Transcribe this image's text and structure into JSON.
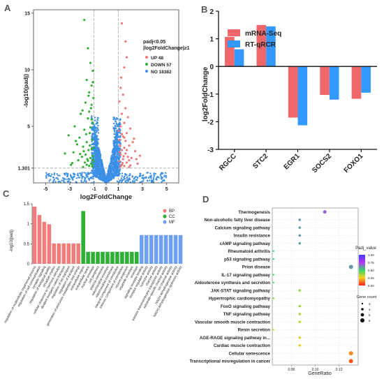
{
  "panels": {
    "a": "A",
    "b": "B",
    "c": "C",
    "d": "D"
  },
  "chart_data": [
    {
      "id": "A",
      "type": "scatter",
      "xlabel": "log2FoldChange",
      "ylabel": "-log10(padj)",
      "xlim": [
        -6,
        6
      ],
      "ylim": [
        0,
        15.3
      ],
      "xticks": [
        -5,
        -3,
        -1,
        0,
        1,
        3,
        5
      ],
      "yticks": [
        1.301,
        5,
        10,
        15
      ],
      "yticklabels": [
        "1.301",
        "5",
        "10",
        "15"
      ],
      "vlines": [
        -1,
        1
      ],
      "hline": 1.301,
      "legend": {
        "title_lines": [
          "padj<0.05",
          "|log2FoldChange|≥1"
        ],
        "position": "top-right",
        "entries": [
          {
            "label": "UP 48",
            "color": "#f0787a"
          },
          {
            "label": "DOWN 57",
            "color": "#2eb135"
          },
          {
            "label": "NO 18382",
            "color": "#3b8fe6"
          }
        ]
      },
      "up_points": [
        [
          1.3,
          14.1
        ],
        [
          1.6,
          12.5
        ],
        [
          1.7,
          11.1
        ],
        [
          1.5,
          10.2
        ],
        [
          1.2,
          8.4
        ],
        [
          1.4,
          7.8
        ],
        [
          1.1,
          7.2
        ],
        [
          1.6,
          6.6
        ],
        [
          1.3,
          6.1
        ],
        [
          1.8,
          5.8
        ],
        [
          1.5,
          5.3
        ],
        [
          1.2,
          5.0
        ],
        [
          2.0,
          4.8
        ],
        [
          1.7,
          4.4
        ],
        [
          1.4,
          4.1
        ],
        [
          1.1,
          3.8
        ],
        [
          2.2,
          3.6
        ],
        [
          1.9,
          3.3
        ],
        [
          1.5,
          3.1
        ],
        [
          1.3,
          2.9
        ],
        [
          2.4,
          2.8
        ],
        [
          1.6,
          2.6
        ],
        [
          1.2,
          2.5
        ],
        [
          1.8,
          2.3
        ],
        [
          2.1,
          2.2
        ],
        [
          1.4,
          2.1
        ],
        [
          1.1,
          1.9
        ],
        [
          1.7,
          1.8
        ],
        [
          2.6,
          1.7
        ],
        [
          1.3,
          1.6
        ],
        [
          1.5,
          1.5
        ],
        [
          1.9,
          1.4
        ],
        [
          2.3,
          3.9
        ],
        [
          1.05,
          4.6
        ],
        [
          1.25,
          9.3
        ],
        [
          1.45,
          2.35
        ],
        [
          2.8,
          2.4
        ],
        [
          1.15,
          3.3
        ],
        [
          1.35,
          1.75
        ],
        [
          2.0,
          1.55
        ],
        [
          1.6,
          3.7
        ],
        [
          1.1,
          2.7
        ],
        [
          1.9,
          2.0
        ],
        [
          2.5,
          2.1
        ],
        [
          1.3,
          4.3
        ],
        [
          1.7,
          2.9
        ],
        [
          1.2,
          1.45
        ],
        [
          1.5,
          4.0
        ]
      ],
      "down_points": [
        [
          -1.8,
          14.4
        ],
        [
          -1.5,
          11.9
        ],
        [
          -1.3,
          10.6
        ],
        [
          -1.1,
          9.9
        ],
        [
          -1.6,
          9.1
        ],
        [
          -1.2,
          8.6
        ],
        [
          -1.4,
          8.0
        ],
        [
          -1.05,
          7.5
        ],
        [
          -1.7,
          7.1
        ],
        [
          -1.25,
          6.6
        ],
        [
          -2.1,
          6.1
        ],
        [
          -1.5,
          5.7
        ],
        [
          -1.1,
          5.3
        ],
        [
          -2.6,
          5.0
        ],
        [
          -1.8,
          4.7
        ],
        [
          -1.35,
          4.4
        ],
        [
          -3.1,
          4.2
        ],
        [
          -2.2,
          4.0
        ],
        [
          -1.15,
          3.8
        ],
        [
          -1.6,
          3.6
        ],
        [
          -2.4,
          3.4
        ],
        [
          -1.9,
          3.2
        ],
        [
          -1.2,
          3.0
        ],
        [
          -1.45,
          2.9
        ],
        [
          -2.7,
          2.7
        ],
        [
          -3.4,
          2.6
        ],
        [
          -1.7,
          2.5
        ],
        [
          -1.1,
          2.4
        ],
        [
          -2.0,
          2.3
        ],
        [
          -1.3,
          2.2
        ],
        [
          -1.55,
          2.1
        ],
        [
          -2.3,
          2.0
        ],
        [
          -1.05,
          1.9
        ],
        [
          -1.75,
          1.8
        ],
        [
          -1.25,
          1.7
        ],
        [
          -2.9,
          1.6
        ],
        [
          -1.4,
          1.5
        ],
        [
          -1.15,
          1.45
        ],
        [
          -1.9,
          1.4
        ],
        [
          -1.2,
          6.9
        ],
        [
          -1.45,
          7.7
        ],
        [
          -1.1,
          8.9
        ],
        [
          -1.35,
          3.3
        ],
        [
          -2.5,
          3.7
        ],
        [
          -1.65,
          4.3
        ],
        [
          -1.2,
          5.6
        ],
        [
          -1.85,
          2.8
        ],
        [
          -1.05,
          3.1
        ],
        [
          -2.15,
          2.55
        ],
        [
          -1.5,
          1.95
        ],
        [
          -1.3,
          4.9
        ],
        [
          -1.95,
          6.4
        ],
        [
          -1.1,
          2.05
        ],
        [
          -1.6,
          1.6
        ],
        [
          -2.8,
          1.75
        ],
        [
          -1.4,
          6.3
        ],
        [
          -1.15,
          1.6
        ]
      ],
      "no_count": 18382
    },
    {
      "id": "B",
      "type": "bar",
      "categories": [
        "RGCC",
        "STC2",
        "EGR1",
        "SOCS2",
        "FOXO1"
      ],
      "series": [
        {
          "name": "mRNA-Seq",
          "color": "#f0676b",
          "values": [
            1.07,
            1.5,
            -1.85,
            -1.03,
            -1.17
          ]
        },
        {
          "name": "RT-qRCR",
          "color": "#3399ff",
          "values": [
            0.62,
            1.45,
            -2.13,
            -1.2,
            -0.95
          ]
        }
      ],
      "ylabel": "log2FoldChange",
      "ylim": [
        -3,
        2
      ],
      "yticks": [
        -3,
        -2,
        -1,
        0,
        1,
        2
      ],
      "legend": "top-left"
    },
    {
      "id": "C",
      "type": "bar",
      "ylabel": "-log10(padj)",
      "ylim": [
        0,
        1.5
      ],
      "yticks": [
        0,
        0.5,
        1,
        1.5
      ],
      "legend": {
        "position": "top-right",
        "entries": [
          {
            "label": "BP",
            "color": "#f07c7c"
          },
          {
            "label": "CC",
            "color": "#2db135"
          },
          {
            "label": "MF",
            "color": "#6da0f2"
          }
        ]
      },
      "categories": [
        "regulation of multicellular organismal process",
        "regulation of cell communication",
        "synaptic signaling",
        "regulation of biological quality",
        "circadian rhythm",
        "cellular response to hormone stimulus",
        "divalent inorganic cation transport",
        "regulation of ion transport",
        "regulation of transport",
        "generation of precursor metabolites and energy",
        "extracellular region",
        "extracellular space",
        "nuclear envelope",
        "cell periphery",
        "plasma membrane",
        "mitochondrial envelope",
        "mitochondrial membrane",
        "integral component of membrane",
        "intrinsic component of membrane",
        "neuron projection",
        "organelle envelope",
        "envelope",
        "signaling receptor binding",
        "receptor regulator activity",
        "hormone activity",
        "channel activity",
        "passive transmembrane transporter activity",
        "substrate-specific channel activity",
        "ion channel activity",
        "NADH dehydrogenase activity",
        "NADH dehydrogenase (quinone) activity"
      ],
      "groups": [
        "BP",
        "BP",
        "BP",
        "BP",
        "BP",
        "BP",
        "BP",
        "BP",
        "BP",
        "BP",
        "CC",
        "CC",
        "CC",
        "CC",
        "CC",
        "CC",
        "CC",
        "CC",
        "CC",
        "CC",
        "CC",
        "CC",
        "MF",
        "MF",
        "MF",
        "MF",
        "MF",
        "MF",
        "MF",
        "MF",
        "MF"
      ],
      "values": [
        1.43,
        1.22,
        1.05,
        0.99,
        0.51,
        0.51,
        0.51,
        0.51,
        0.51,
        0.51,
        1.32,
        0.3,
        0.3,
        0.3,
        0.3,
        0.3,
        0.3,
        0.3,
        0.3,
        0.3,
        0.3,
        0.3,
        0.72,
        0.72,
        0.72,
        0.72,
        0.72,
        0.72,
        0.72,
        0.72,
        0.72
      ]
    },
    {
      "id": "D",
      "type": "scatter",
      "xlabel": "GeneRatio",
      "xlim": [
        0.064,
        0.136
      ],
      "xticks": [
        0.08,
        0.1,
        0.12
      ],
      "xticklabels": [
        "0.08",
        "0.10",
        "0.12"
      ],
      "categories": [
        "Thermogenesis",
        "Non-alcoholic fatty liver disease",
        "Calcium signaling pathway",
        "Insulin resistance",
        "cAMP signaling pathway",
        "Rheumatoid arthritis",
        "p53 signaling pathway",
        "Prion disease",
        "IL-17 signaling pathway",
        "Aldosterone synthesis and secretion",
        "JAK-STAT signaling pathway",
        "Hypertrophic cardiomyopathy",
        "FoxO signaling pathway",
        "TNF signaling pathway",
        "Vascular smooth muscle contraction",
        "Renin secretion",
        "AGE-RAGE signaling pathway in...",
        "Cardiac muscle contraction",
        "Cellular senescence",
        "Transcriptional misregulation in cancer"
      ],
      "gene_ratio": [
        0.108,
        0.087,
        0.087,
        0.087,
        0.087,
        0.065,
        0.065,
        0.13,
        0.065,
        0.065,
        0.087,
        0.065,
        0.087,
        0.087,
        0.087,
        0.065,
        0.087,
        0.087,
        0.13,
        0.13
      ],
      "gene_count": [
        5,
        4,
        4,
        4,
        4,
        3,
        3,
        6,
        3,
        3,
        4,
        3,
        4,
        4,
        4,
        3,
        4,
        4,
        6,
        6
      ],
      "padj": [
        0.68,
        0.6,
        0.58,
        0.6,
        0.58,
        0.5,
        0.5,
        0.6,
        0.48,
        0.46,
        0.38,
        0.4,
        0.36,
        0.34,
        0.32,
        0.3,
        0.3,
        0.28,
        0.15,
        0.08
      ],
      "color_legend": {
        "title": "Padj_value",
        "ticks": [
          1.0,
          0.75,
          0.5,
          0.25,
          0.0
        ],
        "ticklabels": [
          "1.00",
          "0.75",
          "0.50",
          "0.25",
          "0.00"
        ]
      },
      "size_legend": {
        "title": "Gene count",
        "labels": [
          "3",
          "4",
          "5",
          "6"
        ]
      }
    }
  ]
}
